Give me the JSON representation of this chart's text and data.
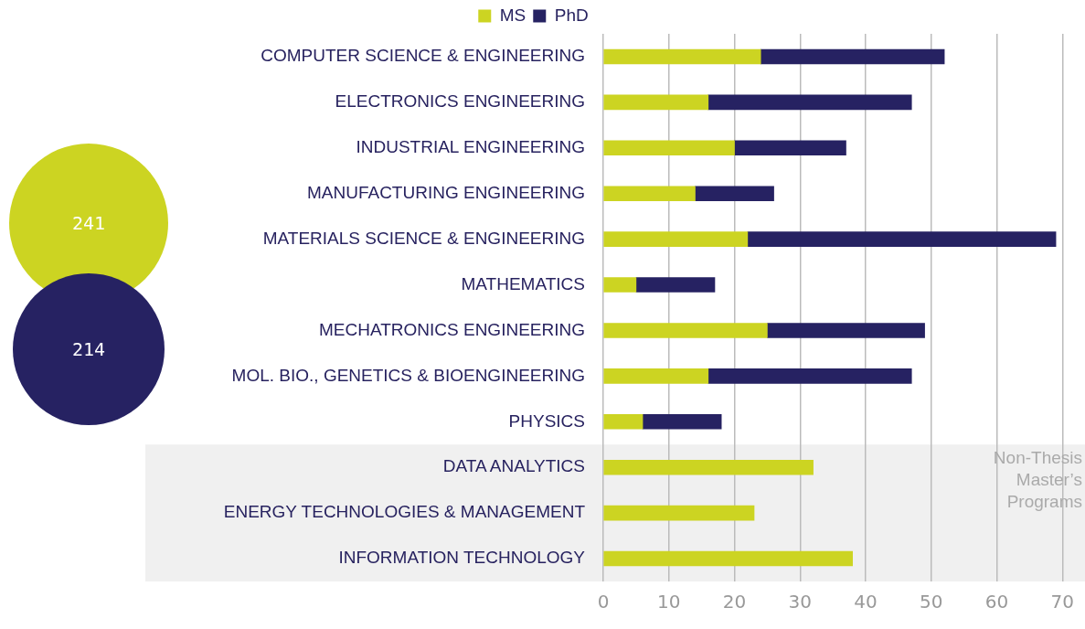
{
  "chart_data": {
    "type": "bar",
    "orientation": "horizontal",
    "stacked": true,
    "categories": [
      "COMPUTER SCIENCE & ENGINEERING",
      "ELECTRONICS ENGINEERING",
      "INDUSTRIAL ENGINEERING",
      "MANUFACTURING ENGINEERING",
      "MATERIALS SCIENCE & ENGINEERING",
      "MATHEMATICS",
      "MECHATRONICS ENGINEERING",
      "MOL. BIO., GENETICS & BIOENGINEERING",
      "PHYSICS",
      "DATA ANALYTICS",
      "ENERGY TECHNOLOGIES & MANAGEMENT",
      "INFORMATION TECHNOLOGY"
    ],
    "series": [
      {
        "name": "MS",
        "color": "#ccd422",
        "values": [
          24,
          16,
          20,
          14,
          22,
          5,
          25,
          16,
          6,
          32,
          23,
          38
        ]
      },
      {
        "name": "PhD",
        "color": "#262262",
        "values": [
          28,
          31,
          17,
          12,
          47,
          12,
          24,
          31,
          12,
          null,
          null,
          null
        ]
      }
    ],
    "xlim": [
      0,
      70
    ],
    "xticks": [
      0,
      10,
      20,
      30,
      40,
      50,
      60,
      70
    ],
    "grid": "x",
    "legend": "top",
    "bands": [
      {
        "axis": "y",
        "from": "DATA ANALYTICS",
        "to": "INFORMATION TECHNOLOGY",
        "label": "Non-Thesis Master’s Programs",
        "color": "#f0f0f0"
      }
    ],
    "annotations": [
      "241",
      "214"
    ]
  }
}
